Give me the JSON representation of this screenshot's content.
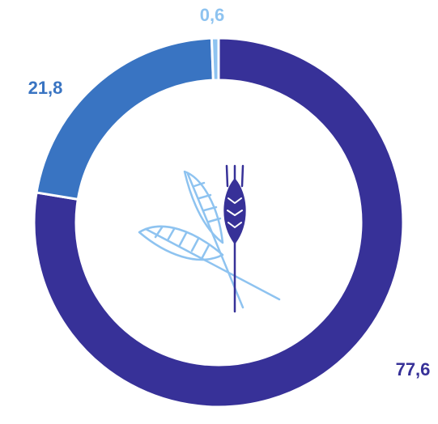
{
  "chart_data": {
    "type": "donut",
    "categories": [
      null,
      null,
      null
    ],
    "values": [
      77.6,
      21.8,
      0.6
    ],
    "value_labels": [
      "77,6",
      "21,8",
      "0,6"
    ],
    "colors": [
      "#373198",
      "#3974c2",
      "#8ec3f0"
    ]
  }
}
